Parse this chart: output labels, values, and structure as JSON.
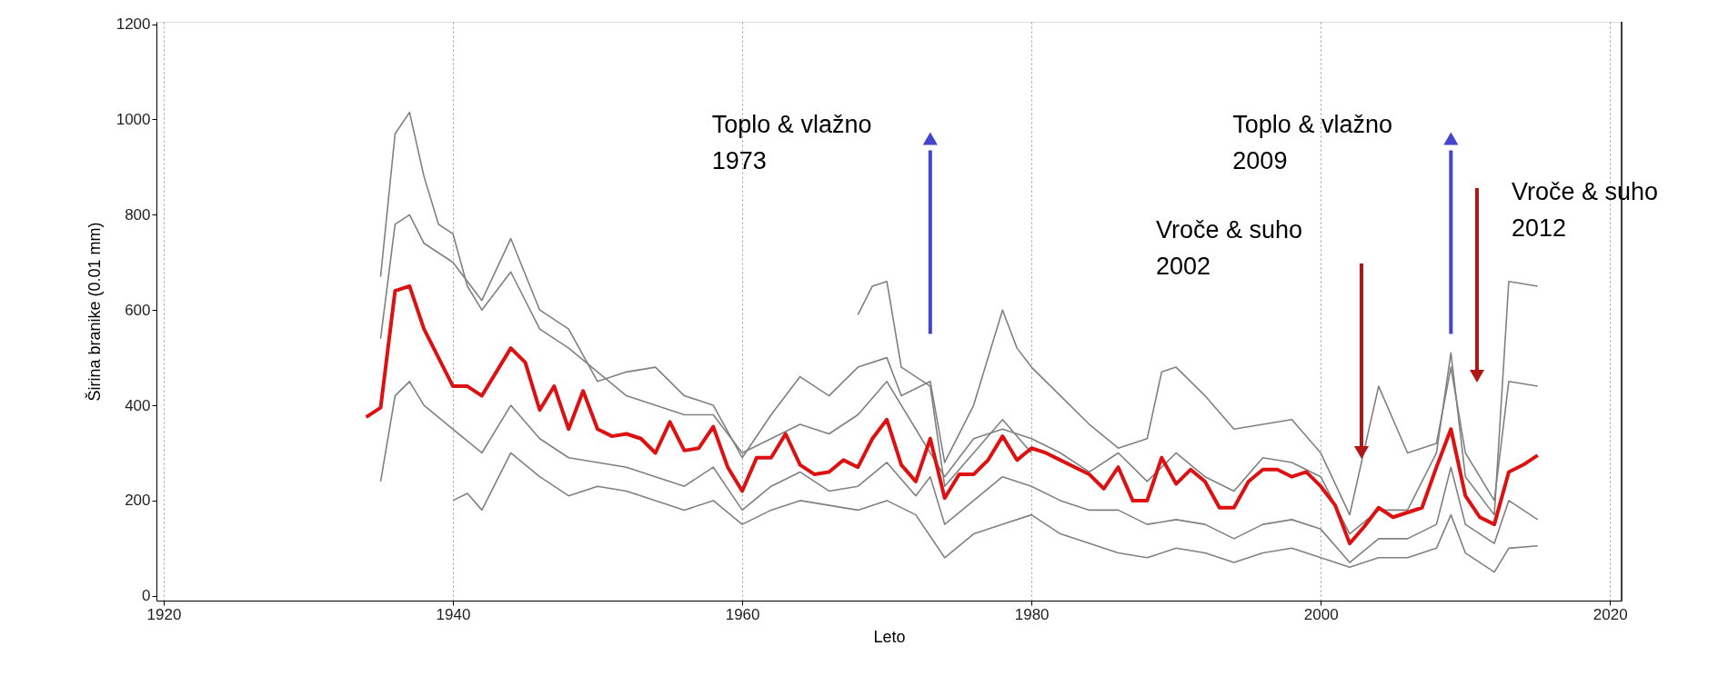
{
  "chart_data": {
    "type": "line",
    "xlabel": "Leto",
    "ylabel": "Širina branike (0.01 mm)",
    "xlim": [
      1919.5,
      2020.8
    ],
    "ylim": [
      -10,
      1205
    ],
    "xticks": [
      1920,
      1940,
      1960,
      1980,
      2000,
      2020
    ],
    "yticks": [
      0,
      200,
      400,
      600,
      800,
      1000,
      1200
    ],
    "grid": "x",
    "marker": "none",
    "line_style": "solid",
    "series": [
      {
        "color": "#808080",
        "x": [
          1935,
          1936,
          1937,
          1938,
          1939,
          1940,
          1941,
          1942,
          1944,
          1946,
          1948,
          1950,
          1952,
          1954,
          1956,
          1958,
          1960,
          1962,
          1964,
          1966,
          1968,
          1970,
          1972,
          1974,
          1976,
          1978,
          1980,
          1982,
          1984,
          1986,
          1988,
          1990,
          1992,
          1994,
          1996,
          1998,
          2000,
          2002,
          2004,
          2006,
          2008,
          2009,
          2010,
          2012,
          2013,
          2015
        ],
        "values": [
          670,
          970,
          1015,
          880,
          780,
          760,
          650,
          600,
          680,
          560,
          520,
          470,
          420,
          400,
          380,
          380,
          300,
          330,
          360,
          340,
          380,
          450,
          350,
          250,
          330,
          350,
          330,
          300,
          260,
          300,
          240,
          300,
          250,
          220,
          290,
          280,
          250,
          130,
          180,
          180,
          300,
          510,
          250,
          170,
          660,
          650
        ]
      },
      {
        "color": "#808080",
        "x": [
          1940,
          1941,
          1942,
          1944,
          1946,
          1948,
          1950,
          1952,
          1954,
          1956,
          1958,
          1960,
          1962,
          1964,
          1966,
          1968,
          1970,
          1972,
          1974,
          1976,
          1978,
          1980,
          1982,
          1984,
          1986,
          1988,
          1990,
          1992,
          1994,
          1996,
          1998,
          2000,
          2002,
          2004,
          2006,
          2008,
          2009,
          2010,
          2012,
          2013,
          2015
        ],
        "values": [
          200,
          215,
          180,
          300,
          250,
          210,
          230,
          220,
          200,
          180,
          200,
          150,
          180,
          200,
          190,
          180,
          200,
          170,
          80,
          130,
          150,
          170,
          130,
          110,
          90,
          80,
          100,
          90,
          70,
          90,
          100,
          80,
          60,
          80,
          80,
          100,
          170,
          90,
          50,
          100,
          105
        ]
      },
      {
        "color": "#808080",
        "x": [
          1935,
          1936,
          1937,
          1938,
          1940,
          1942,
          1944,
          1946,
          1948,
          1950,
          1952,
          1954,
          1956,
          1958,
          1960,
          1962,
          1964,
          1966,
          1968,
          1970,
          1971,
          1973,
          1974,
          1976,
          1978,
          1979,
          1980,
          1982,
          1984,
          1986,
          1988,
          1989,
          1990,
          1992,
          1994,
          1996,
          1998,
          2000,
          2002,
          2004,
          2006,
          2008,
          2009,
          2010,
          2012,
          2013,
          2015
        ],
        "values": [
          540,
          780,
          800,
          740,
          700,
          620,
          750,
          600,
          560,
          450,
          470,
          480,
          420,
          400,
          290,
          380,
          460,
          420,
          480,
          500,
          420,
          450,
          280,
          400,
          600,
          520,
          480,
          420,
          360,
          310,
          330,
          470,
          480,
          420,
          350,
          360,
          370,
          300,
          170,
          440,
          300,
          320,
          480,
          300,
          200,
          450,
          440
        ]
      },
      {
        "color": "#808080",
        "x": [
          1935,
          1936,
          1937,
          1938,
          1940,
          1942,
          1944,
          1946,
          1948,
          1950,
          1952,
          1954,
          1956,
          1958,
          1960,
          1962,
          1964,
          1966,
          1968,
          1970,
          1972,
          1973,
          1974,
          1976,
          1978,
          1980,
          1982,
          1984,
          1986,
          1988,
          1990,
          1992,
          1994,
          1996,
          1998,
          2000,
          2002,
          2004,
          2006,
          2008,
          2009,
          2010,
          2012,
          2013,
          2015
        ],
        "values": [
          240,
          420,
          450,
          400,
          350,
          300,
          400,
          330,
          290,
          280,
          270,
          250,
          230,
          270,
          180,
          230,
          260,
          220,
          230,
          280,
          210,
          250,
          150,
          200,
          250,
          230,
          200,
          180,
          180,
          150,
          160,
          150,
          120,
          150,
          160,
          140,
          70,
          120,
          120,
          150,
          270,
          150,
          110,
          200,
          160
        ]
      },
      {
        "color": "#808080",
        "x": [
          1968,
          1969,
          1970,
          1971,
          1973,
          1974,
          1976,
          1978,
          1980
        ],
        "values": [
          590,
          650,
          660,
          480,
          440,
          230,
          300,
          370,
          300
        ]
      },
      {
        "color": "#dd1111",
        "x": [
          1934,
          1935,
          1936,
          1937,
          1938,
          1939,
          1940,
          1941,
          1942,
          1943,
          1944,
          1945,
          1946,
          1947,
          1948,
          1949,
          1950,
          1951,
          1952,
          1953,
          1954,
          1955,
          1956,
          1957,
          1958,
          1959,
          1960,
          1961,
          1962,
          1963,
          1964,
          1965,
          1966,
          1967,
          1968,
          1969,
          1970,
          1971,
          1972,
          1973,
          1974,
          1975,
          1976,
          1977,
          1978,
          1979,
          1980,
          1981,
          1982,
          1983,
          1984,
          1985,
          1986,
          1987,
          1988,
          1989,
          1990,
          1991,
          1992,
          1993,
          1994,
          1995,
          1996,
          1997,
          1998,
          1999,
          2000,
          2001,
          2002,
          2003,
          2004,
          2005,
          2006,
          2007,
          2008,
          2009,
          2010,
          2011,
          2012,
          2013,
          2014,
          2015
        ],
        "values": [
          375,
          395,
          640,
          650,
          560,
          500,
          440,
          440,
          420,
          470,
          520,
          490,
          390,
          440,
          350,
          430,
          350,
          335,
          340,
          330,
          300,
          365,
          305,
          310,
          355,
          270,
          220,
          290,
          290,
          340,
          275,
          255,
          260,
          285,
          270,
          330,
          370,
          275,
          240,
          330,
          205,
          255,
          255,
          285,
          335,
          285,
          310,
          300,
          285,
          270,
          255,
          225,
          270,
          200,
          200,
          290,
          235,
          265,
          240,
          185,
          185,
          240,
          265,
          265,
          250,
          260,
          230,
          190,
          110,
          145,
          185,
          165,
          175,
          185,
          270,
          350,
          210,
          165,
          150,
          260,
          275,
          295
        ]
      }
    ],
    "annotations": [
      {
        "text": "Toplo & vlažno 1973",
        "x": 1973,
        "y": 960
      },
      "Vroče & suho 2002",
      {
        "text": "Toplo & vlažno 2009",
        "x": 2009,
        "y": 960
      },
      "Vroče & suho 2012"
    ]
  }
}
